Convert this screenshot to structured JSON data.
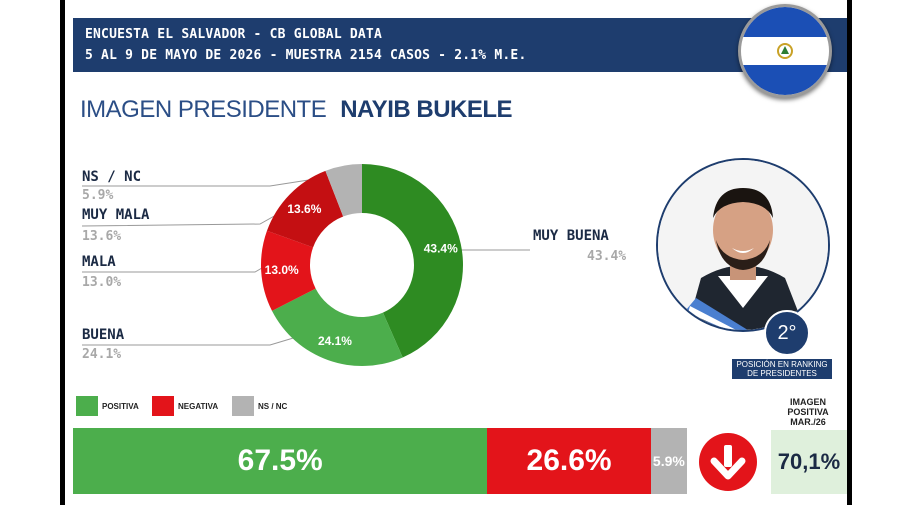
{
  "header": {
    "line1": "ENCUESTA EL SALVADOR - CB GLOBAL DATA",
    "line2": "5 AL 9 DE MAYO DE 2026 - MUESTRA 2154 CASOS - 2.1% M.E."
  },
  "title": {
    "prefix": "IMAGEN PRESIDENTE",
    "name": "NAYIB BUKELE"
  },
  "colors": {
    "header_bg": "#1e3d6e",
    "positive": "#4cae4c",
    "dark_green": "#2e8b22",
    "negative": "#e3141a",
    "dark_red": "#c40f12",
    "ns_nc": "#b3b3b3"
  },
  "chart_data": {
    "type": "pie",
    "title": "IMAGEN PRESIDENTE NAYIB BUKELE",
    "slices": [
      {
        "label": "MUY BUENA",
        "value": 43.4,
        "display": "43.4%",
        "color": "#2e8b22"
      },
      {
        "label": "BUENA",
        "value": 24.1,
        "display": "24.1%",
        "color": "#4cae4c"
      },
      {
        "label": "MALA",
        "value": 13.0,
        "display": "13.0%",
        "color": "#e3141a"
      },
      {
        "label": "MUY MALA",
        "value": 13.6,
        "display": "13.6%",
        "color": "#c40f12"
      },
      {
        "label": "NS / NC",
        "value": 5.9,
        "display": "5.9%",
        "color": "#b3b3b3"
      }
    ],
    "summary": [
      {
        "label": "POSITIVA",
        "value": 67.5,
        "display": "67.5%",
        "color": "#4cae4c"
      },
      {
        "label": "NEGATIVA",
        "value": 26.6,
        "display": "26.6%",
        "color": "#e3141a"
      },
      {
        "label": "NS / NC",
        "value": 5.9,
        "display": "5.9%",
        "color": "#b3b3b3"
      }
    ]
  },
  "categories": {
    "ns_nc": {
      "label": "NS / NC",
      "value": "5.9%"
    },
    "muy_mala": {
      "label": "MUY MALA",
      "value": "13.6%"
    },
    "mala": {
      "label": "MALA",
      "value": "13.0%"
    },
    "buena": {
      "label": "BUENA",
      "value": "24.1%"
    },
    "muy_buena": {
      "label": "MUY BUENA",
      "value": "43.4%"
    }
  },
  "legend": {
    "positive": "POSITIVA",
    "negative": "NEGATIVA",
    "ns_nc": "NS / NC"
  },
  "bar": {
    "positive": "67.5%",
    "negative": "26.6%",
    "ns_nc": "5.9%"
  },
  "ranking": {
    "position": "2°",
    "caption_line1": "POSICIÓN EN RANKING",
    "caption_line2": "DE PRESIDENTES"
  },
  "image_positive": {
    "label_line1": "IMAGEN",
    "label_line2": "POSITIVA",
    "label_line3": "MAR./26",
    "value": "70,1%"
  },
  "icons": {
    "flag": "el-salvador-flag-icon",
    "trend": "arrow-down-icon"
  }
}
